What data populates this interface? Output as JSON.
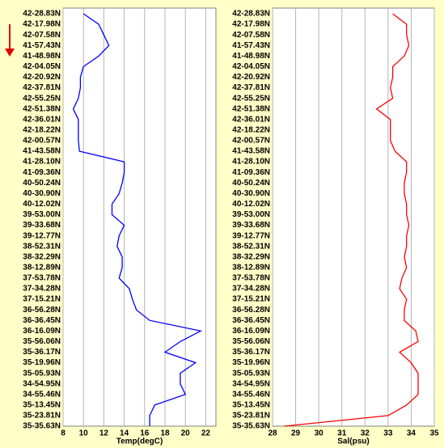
{
  "chart_data": [
    {
      "type": "line",
      "orientation": "vertical-profile",
      "xlabel": "Temp(degC)",
      "color": "#0000ff",
      "grid": true,
      "xlim": [
        8,
        23
      ],
      "xticks": [
        8,
        10,
        12,
        14,
        16,
        18,
        20,
        22
      ],
      "categories": [
        "42-28.83N",
        "42-17.98N",
        "42-07.58N",
        "41-57.43N",
        "41-48.98N",
        "42-04.05N",
        "42-20.92N",
        "42-37.81N",
        "42-55.25N",
        "42-51.38N",
        "42-36.01N",
        "42-18.22N",
        "42-00.57N",
        "41-43.58N",
        "41-28.10N",
        "41-09.36N",
        "40-50.24N",
        "40-30.90N",
        "40-12.02N",
        "39-53.00N",
        "39-33.68N",
        "39-12.77N",
        "38-52.31N",
        "38-32.29N",
        "38-12.89N",
        "37-53.78N",
        "37-34.28N",
        "37-15.21N",
        "36-56.28N",
        "36-36.45N",
        "36-16.09N",
        "35-56.06N",
        "35-36.17N",
        "35-19.96N",
        "35-05.93N",
        "34-54.95N",
        "34-55.46N",
        "35-13.45N",
        "35-23.81N",
        "35-35.63N"
      ],
      "values": [
        10,
        11.5,
        12,
        12.5,
        11.5,
        10,
        9.7,
        9.7,
        9.5,
        9,
        9.5,
        9.5,
        9.5,
        9.6,
        14,
        14,
        13.8,
        13.5,
        12.8,
        12.8,
        14,
        13.5,
        13.3,
        13.8,
        13.8,
        13.5,
        14.5,
        14.8,
        15.2,
        16.5,
        21.5,
        19.5,
        18,
        21,
        19.5,
        19.5,
        20,
        17,
        16.5,
        16.5
      ]
    },
    {
      "type": "line",
      "orientation": "vertical-profile",
      "xlabel": "Sal(psu)",
      "color": "#ff0000",
      "grid": true,
      "xlim": [
        28,
        35
      ],
      "xticks": [
        28,
        29,
        30,
        31,
        32,
        33,
        34,
        35
      ],
      "categories": [
        "42-28.83N",
        "42-17.98N",
        "42-07.58N",
        "41-57.43N",
        "41-48.98N",
        "42-04.05N",
        "42-20.92N",
        "42-37.81N",
        "42-55.25N",
        "42-51.38N",
        "42-36.01N",
        "42-18.22N",
        "42-00.57N",
        "41-43.58N",
        "41-28.10N",
        "41-09.36N",
        "40-50.24N",
        "40-30.90N",
        "40-12.02N",
        "39-53.00N",
        "39-33.68N",
        "39-12.77N",
        "38-52.31N",
        "38-32.29N",
        "38-12.89N",
        "37-53.78N",
        "37-34.28N",
        "37-15.21N",
        "36-56.28N",
        "36-36.45N",
        "36-16.09N",
        "35-56.06N",
        "35-36.17N",
        "35-19.96N",
        "35-05.93N",
        "34-54.95N",
        "34-55.46N",
        "35-13.45N",
        "35-23.81N",
        "35-35.63N"
      ],
      "values": [
        33.2,
        33.8,
        33.8,
        33.9,
        33.7,
        33.2,
        33.2,
        33.1,
        33.2,
        32.5,
        33.1,
        33.1,
        33.1,
        33.3,
        33.8,
        33.8,
        33.7,
        33.7,
        33.8,
        33.8,
        33.9,
        33.8,
        33.8,
        33.7,
        33.8,
        33.6,
        33.5,
        33.8,
        33.7,
        33.7,
        34.2,
        34.3,
        33.5,
        34,
        34.3,
        34.3,
        34.3,
        33.8,
        33,
        28.5
      ]
    }
  ]
}
